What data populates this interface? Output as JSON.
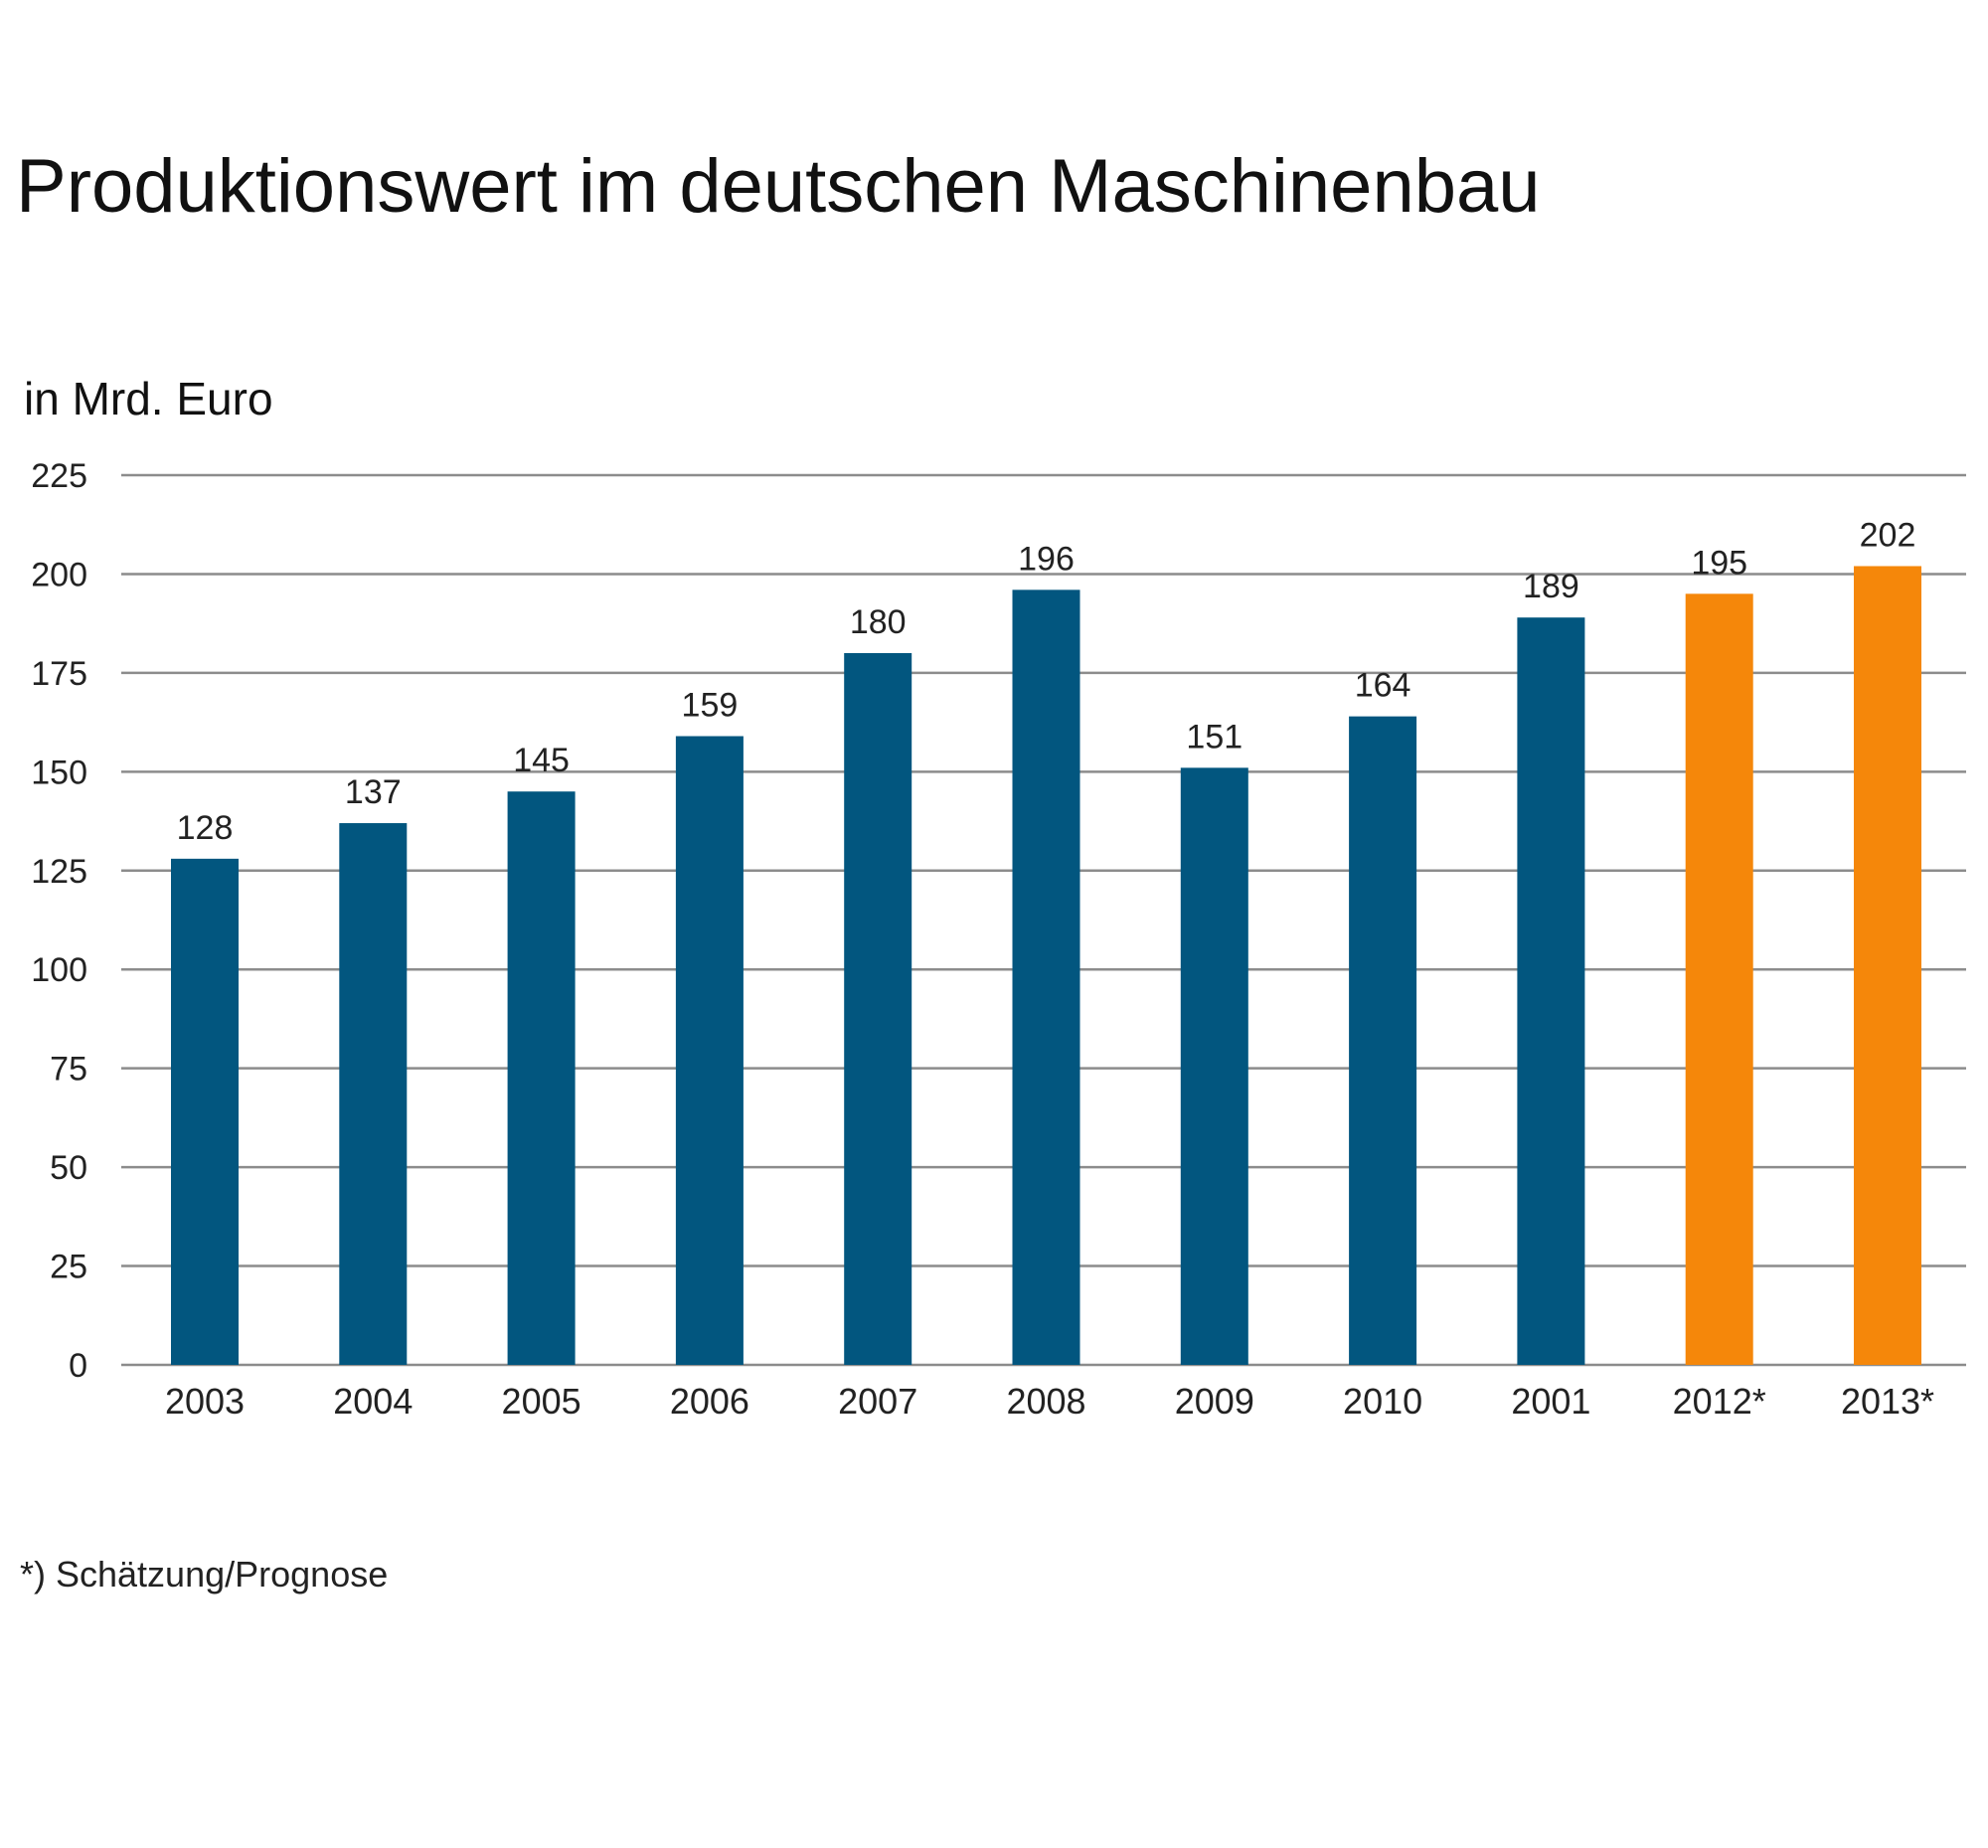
{
  "chart_data": {
    "type": "bar",
    "title": "Produktionswert im deutschen Maschinenbau",
    "ylabel": "in Mrd. Euro",
    "xlabel": "",
    "footnote": "*) Schätzung/Prognose",
    "categories": [
      "2003",
      "2004",
      "2005",
      "2006",
      "2007",
      "2008",
      "2009",
      "2010",
      "2001",
      "2012*",
      "2013*"
    ],
    "values": [
      128,
      137,
      145,
      159,
      180,
      196,
      151,
      164,
      189,
      195,
      202
    ],
    "value_labels": [
      "128",
      "137",
      "145",
      "159",
      "180",
      "196",
      "151",
      "164",
      "189",
      "195",
      "202"
    ],
    "estimated": [
      false,
      false,
      false,
      false,
      false,
      false,
      false,
      false,
      false,
      true,
      true
    ],
    "ylim": [
      0,
      225
    ],
    "yticks": [
      0,
      25,
      50,
      75,
      100,
      125,
      150,
      175,
      200,
      225
    ],
    "ytick_labels": [
      "0",
      "25",
      "50",
      "75",
      "100",
      "125",
      "150",
      "175",
      "200",
      "225"
    ],
    "grid": true,
    "legend": "none",
    "colors": {
      "actual": "#02567f",
      "estimate": "#f5870a",
      "grid": "#8c8c8c"
    }
  }
}
